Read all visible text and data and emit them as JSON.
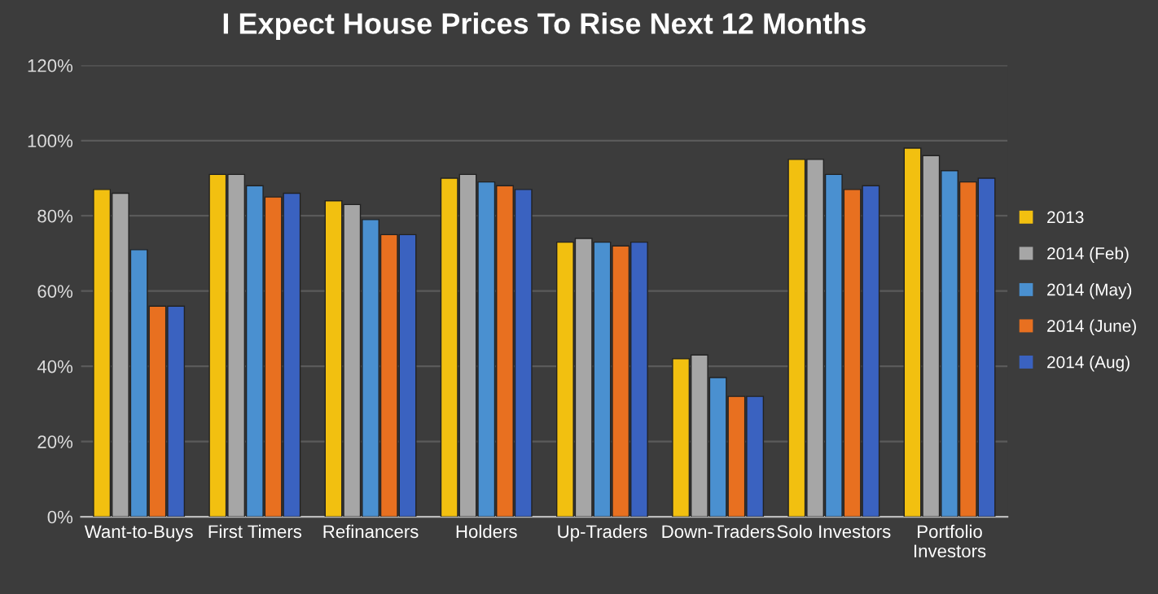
{
  "chart_data": {
    "type": "bar",
    "title": "I Expect House Prices To Rise Next 12 Months",
    "categories": [
      "Want-to-Buys",
      "First Timers",
      "Refinancers",
      "Holders",
      "Up-Traders",
      "Down-Traders",
      "Solo Investors",
      "Portfolio\nInvestors"
    ],
    "series": [
      {
        "name": "2013",
        "color": "#f2c010",
        "values": [
          87,
          91,
          84,
          90,
          73,
          42,
          95,
          98
        ]
      },
      {
        "name": "2014 (Feb)",
        "color": "#a6a6a6",
        "values": [
          86,
          91,
          83,
          91,
          74,
          43,
          95,
          96
        ]
      },
      {
        "name": "2014 (May)",
        "color": "#4a90d0",
        "values": [
          71,
          88,
          79,
          89,
          73,
          37,
          91,
          92
        ]
      },
      {
        "name": "2014 (June)",
        "color": "#e87020",
        "values": [
          56,
          85,
          75,
          88,
          72,
          32,
          87,
          89
        ]
      },
      {
        "name": "2014 (Aug)",
        "color": "#3a62c0",
        "values": [
          56,
          86,
          75,
          87,
          73,
          32,
          88,
          90
        ]
      }
    ],
    "ylim": [
      0,
      120
    ],
    "yticks": [
      {
        "value": 0,
        "label": "0%"
      },
      {
        "value": 20,
        "label": "20%"
      },
      {
        "value": 40,
        "label": "40%"
      },
      {
        "value": 60,
        "label": "60%"
      },
      {
        "value": 80,
        "label": "80%"
      },
      {
        "value": 100,
        "label": "100%"
      },
      {
        "value": 120,
        "label": "120%"
      }
    ],
    "grid": "y",
    "legend": "right"
  }
}
